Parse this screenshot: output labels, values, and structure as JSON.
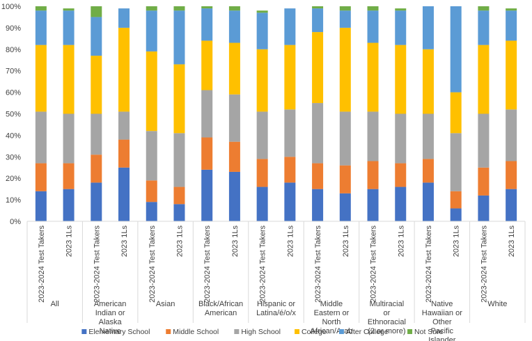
{
  "chart_data": {
    "type": "bar",
    "stacked": true,
    "title": "",
    "xlabel": "",
    "ylabel": "",
    "ylim": [
      0,
      100
    ],
    "y_tick_labels": [
      "0%",
      "10%",
      "20%",
      "30%",
      "40%",
      "50%",
      "60%",
      "70%",
      "80%",
      "90%",
      "100%"
    ],
    "grid": false,
    "legend_position": "bottom",
    "groups": [
      {
        "label": "All",
        "bars": [
          "2023-2024 Test Takers",
          "2023 1Ls"
        ]
      },
      {
        "label": "American Indian or Alaska Native",
        "bars": [
          "2023-2024 Test Takers",
          "2023 1Ls"
        ]
      },
      {
        "label": "Asian",
        "bars": [
          "2023-2024 Test Takers",
          "2023 1Ls"
        ]
      },
      {
        "label": "Black/African American",
        "bars": [
          "2023-2024 Test Takers",
          "2023 1Ls"
        ]
      },
      {
        "label": "Hispanic or Latina/é/o/x",
        "bars": [
          "2023-2024 Test Takers",
          "2023 1Ls"
        ]
      },
      {
        "label": "Middle Eastern or North African/Arab",
        "bars": [
          "2023-2024 Test Takers",
          "2023 1Ls"
        ]
      },
      {
        "label": "Multiracial or Ethnoracial (2 or more)",
        "bars": [
          "2023-2024 Test Takers",
          "2023 1Ls"
        ]
      },
      {
        "label": "Native Hawaiian or Other Pacific Islander",
        "bars": [
          "2023-2024 Test Takers",
          "2023 1Ls"
        ]
      },
      {
        "label": "White",
        "bars": [
          "2023-2024 Test Takers",
          "2023 1Ls"
        ]
      }
    ],
    "series": [
      {
        "name": "Elementary School",
        "color": "#4472C4",
        "values": [
          14,
          15,
          18,
          25,
          9,
          8,
          24,
          23,
          16,
          18,
          15,
          13,
          15,
          16,
          18,
          6,
          12,
          15
        ]
      },
      {
        "name": "Middle School",
        "color": "#ED7D31",
        "values": [
          13,
          12,
          13,
          13,
          10,
          8,
          15,
          14,
          13,
          12,
          12,
          13,
          13,
          11,
          11,
          8,
          13,
          13
        ]
      },
      {
        "name": "High School",
        "color": "#A5A5A5",
        "values": [
          24,
          23,
          19,
          13,
          23,
          25,
          22,
          22,
          22,
          22,
          28,
          25,
          23,
          23,
          21,
          27,
          25,
          24
        ]
      },
      {
        "name": "College",
        "color": "#FFC000",
        "values": [
          31,
          32,
          27,
          39,
          37,
          32,
          23,
          24,
          29,
          30,
          33,
          39,
          32,
          32,
          30,
          19,
          32,
          32
        ]
      },
      {
        "name": "After College",
        "color": "#5B9BD5",
        "values": [
          16,
          16,
          18,
          9,
          19,
          25,
          15,
          15,
          17,
          17,
          11,
          8,
          15,
          16,
          20,
          40,
          16,
          14
        ]
      },
      {
        "name": "Not Sure",
        "color": "#70AD47",
        "values": [
          2,
          1,
          5,
          0,
          2,
          2,
          1,
          2,
          1,
          0,
          1,
          2,
          2,
          1,
          0,
          0,
          2,
          1
        ]
      }
    ]
  }
}
